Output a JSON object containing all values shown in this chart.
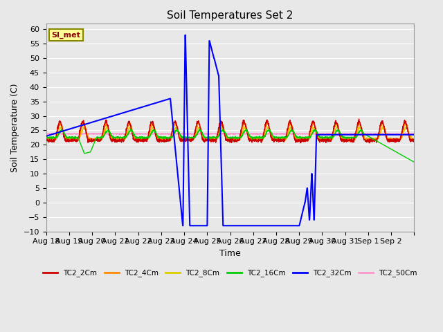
{
  "title": "Soil Temperatures Set 2",
  "xlabel": "Time",
  "ylabel": "Soil Temperature (C)",
  "ylim": [
    -10,
    62
  ],
  "yticks": [
    -10,
    -5,
    0,
    5,
    10,
    15,
    20,
    25,
    30,
    35,
    40,
    45,
    50,
    55,
    60
  ],
  "bg_color": "#e8e8e8",
  "plot_bg_color": "#e8e8e8",
  "grid_color": "#ffffff",
  "legend_labels": [
    "TC2_2Cm",
    "TC2_4Cm",
    "TC2_8Cm",
    "TC2_16Cm",
    "TC2_32Cm",
    "TC2_50Cm"
  ],
  "legend_colors": [
    "#cc0000",
    "#ff8800",
    "#ddcc00",
    "#00cc00",
    "#0000ff",
    "#ff99cc"
  ],
  "annotation_text": "SI_met",
  "annotation_color": "#880000",
  "annotation_bg": "#ffff99",
  "annotation_border": "#888800"
}
